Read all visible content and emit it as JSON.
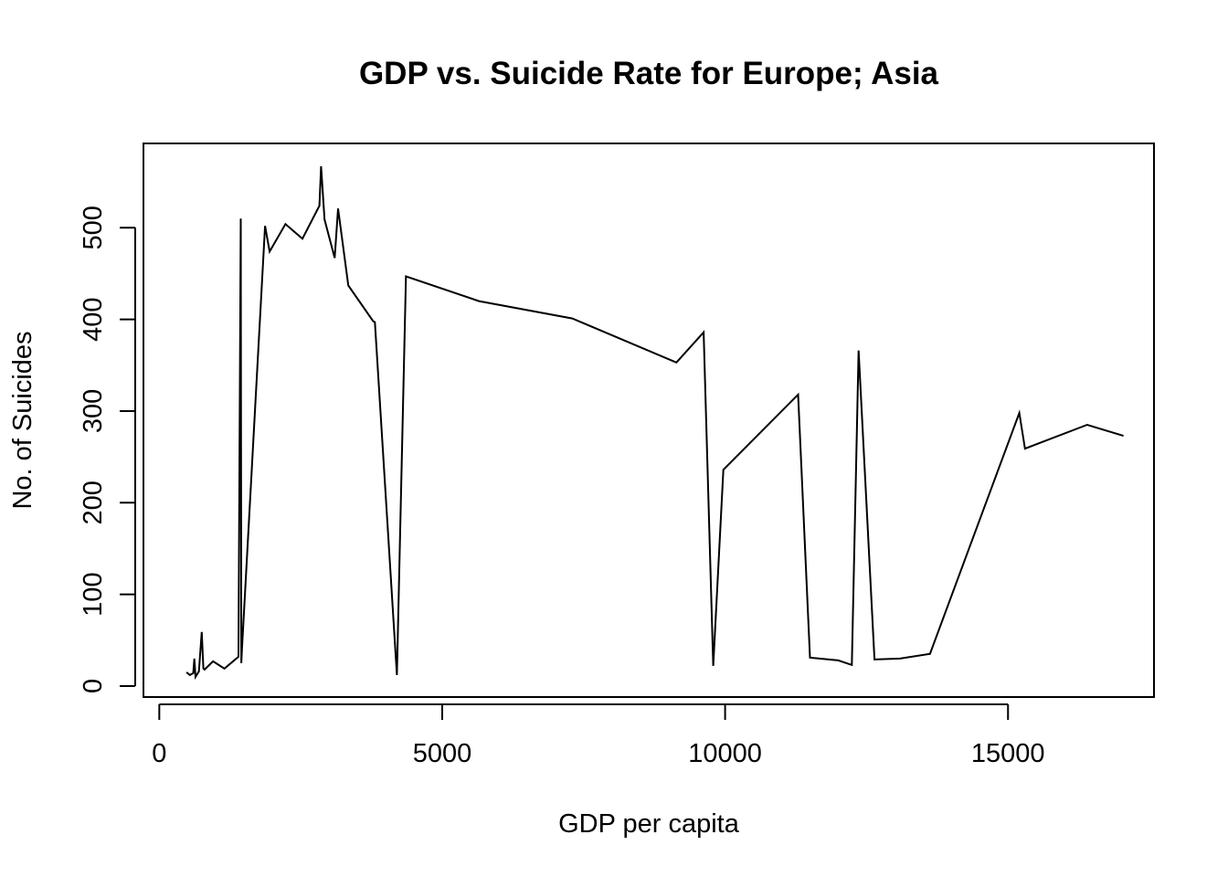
{
  "chart_data": {
    "type": "line",
    "title": "GDP vs. Suicide Rate for Europe; Asia",
    "xlabel": "GDP per capita",
    "ylabel": "No. of Suicides",
    "xlim": [
      -280,
      17580
    ],
    "ylim": [
      -12,
      592
    ],
    "x_ticks": [
      0,
      5000,
      10000,
      15000
    ],
    "x_tick_labels": [
      "0",
      "5000",
      "10000",
      "15000"
    ],
    "y_ticks": [
      0,
      100,
      200,
      300,
      400,
      500
    ],
    "y_tick_labels": [
      "0",
      "100",
      "200",
      "300",
      "400",
      "500"
    ],
    "grid": false,
    "legend": "none",
    "color": "#000000",
    "series": [
      {
        "x": [
          480,
          540,
          600,
          620,
          640,
          700,
          750,
          780,
          800,
          950,
          1150,
          1400,
          1440,
          1450,
          1460,
          1870,
          1950,
          2230,
          2530,
          2830,
          2860,
          2920,
          3100,
          3160,
          3340,
          3780,
          3810,
          4200,
          4360,
          5650,
          7300,
          9140,
          9620,
          9790,
          9970,
          11290,
          11500,
          12000,
          12240,
          12360,
          12640,
          13090,
          13620,
          15200,
          15300,
          16400,
          17040
        ],
        "y": [
          15,
          12,
          14,
          30,
          10,
          16,
          59,
          19,
          18,
          27,
          19,
          32,
          510,
          25,
          40,
          502,
          474,
          504,
          488,
          524,
          567,
          509,
          467,
          521,
          437,
          398,
          397,
          12,
          447,
          420,
          401,
          353,
          386,
          22,
          236,
          318,
          31,
          28,
          23,
          366,
          29,
          30,
          35,
          298,
          259,
          285,
          273
        ]
      }
    ]
  }
}
